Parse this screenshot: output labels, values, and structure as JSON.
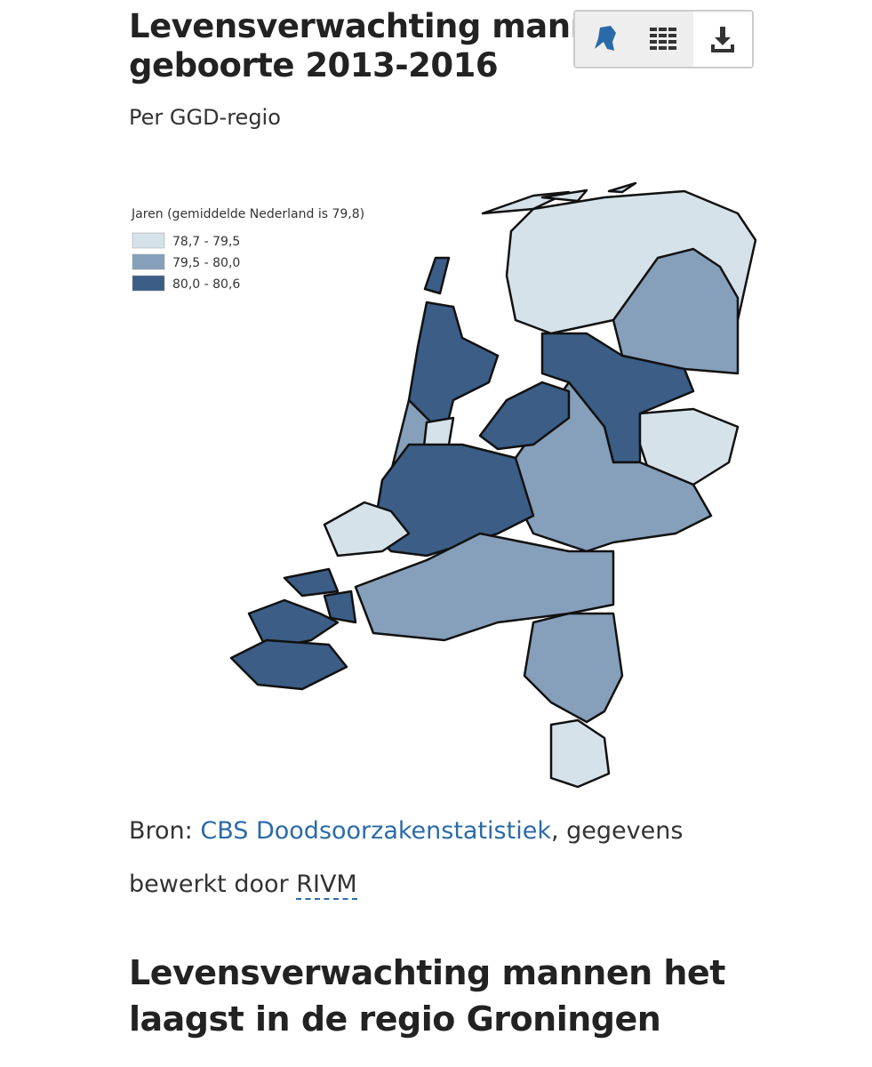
{
  "header": {
    "title_lines": [
      "Levensverwachting manne",
      "geboorte 2013-2016"
    ],
    "subtitle": "Per GGD-regio"
  },
  "legend": {
    "title": "Jaren (gemiddelde Nederland is 79,8)",
    "items": [
      {
        "label": "78,7 - 79,5",
        "color": "#d6e2ea"
      },
      {
        "label": "79,5 - 80,0",
        "color": "#869fba"
      },
      {
        "label": "80,0 - 80,6",
        "color": "#3b5d86"
      }
    ]
  },
  "source": {
    "prefix": "Bron:",
    "link": "CBS Doodsoorzakenstatistiek",
    "middle": ", gegevens bewerkt door",
    "abbr": "RIVM"
  },
  "heading": {
    "lines": [
      "Levensverwachting mannen het",
      "laagst in de regio Groningen"
    ]
  }
}
